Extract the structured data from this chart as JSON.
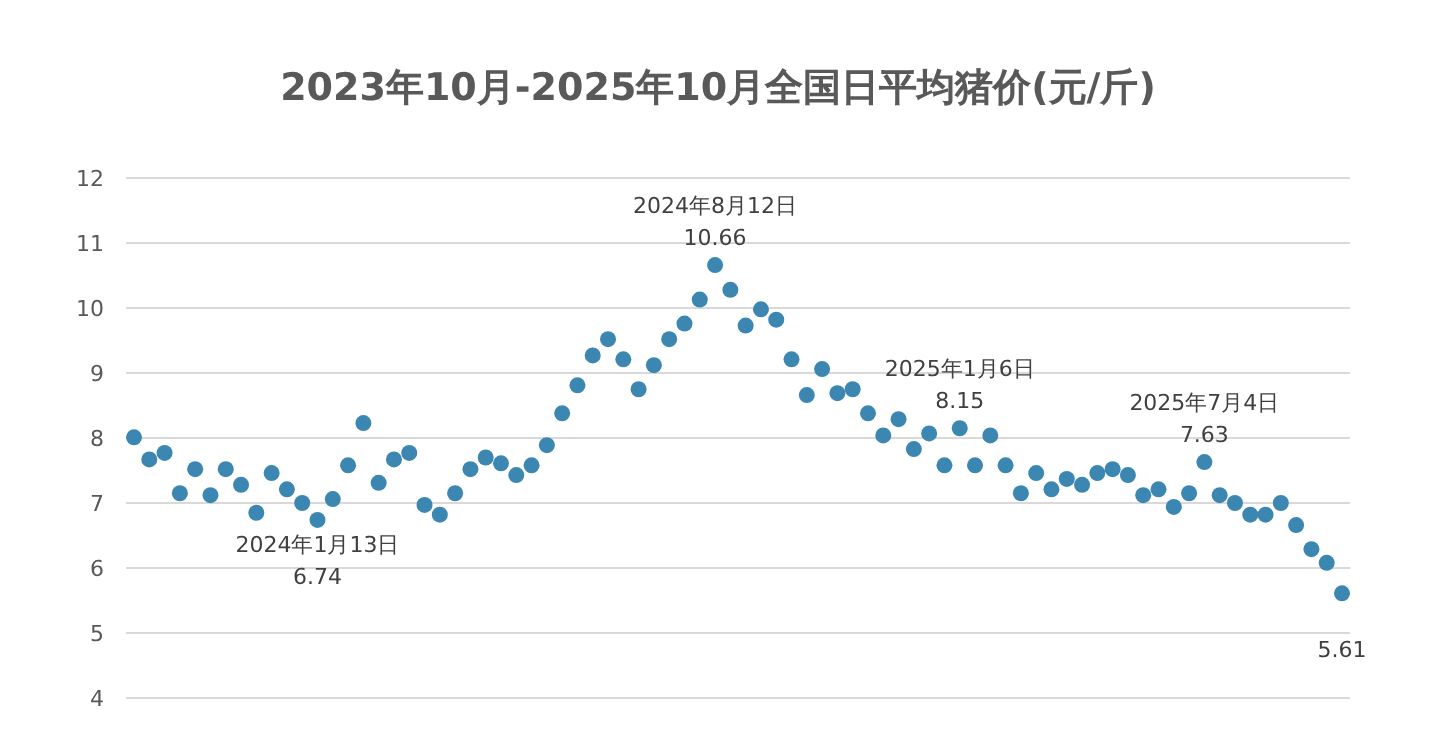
{
  "chart_data": {
    "type": "scatter",
    "title": "2023年10月-2025年10月全国日平均猪价(元/斤)",
    "categories": [
      null,
      null,
      null,
      null,
      null,
      null,
      null,
      null,
      null,
      null,
      null,
      null,
      null,
      null,
      null,
      null,
      null,
      null,
      null,
      null,
      null,
      null,
      null,
      null,
      null,
      null,
      null,
      null,
      null,
      null,
      null,
      null,
      null,
      null,
      null,
      null,
      null,
      null,
      null,
      null,
      null,
      null,
      null,
      null,
      null,
      null,
      null,
      null,
      null,
      null,
      null,
      null,
      null,
      null,
      null,
      null,
      null,
      null,
      null,
      null,
      null,
      null,
      null,
      null,
      null,
      null,
      null,
      null,
      null,
      null,
      null,
      null,
      null,
      null,
      null,
      null,
      null,
      null,
      null,
      null
    ],
    "values": [
      8.01,
      7.67,
      7.77,
      7.15,
      7.52,
      7.12,
      7.52,
      7.28,
      6.85,
      7.46,
      7.21,
      7.0,
      6.74,
      7.06,
      7.58,
      8.23,
      7.31,
      7.67,
      7.77,
      6.97,
      6.82,
      7.15,
      7.52,
      7.7,
      7.61,
      7.43,
      7.58,
      7.89,
      8.38,
      8.81,
      9.27,
      9.52,
      9.21,
      8.75,
      9.12,
      9.52,
      9.76,
      10.13,
      10.66,
      10.28,
      9.73,
      9.98,
      9.82,
      9.21,
      8.66,
      9.06,
      8.69,
      8.75,
      8.38,
      8.04,
      8.29,
      7.83,
      8.07,
      7.58,
      8.15,
      7.58,
      8.04,
      7.58,
      7.15,
      7.46,
      7.21,
      7.37,
      7.28,
      7.46,
      7.52,
      7.43,
      7.12,
      7.21,
      6.94,
      7.15,
      7.63,
      7.12,
      7.0,
      6.82,
      6.82,
      7.0,
      6.66,
      6.29,
      6.08,
      5.61
    ],
    "value_labels": [
      null,
      null,
      null,
      null,
      null,
      null,
      null,
      null,
      null,
      null,
      null,
      null,
      "6.74",
      null,
      null,
      null,
      null,
      null,
      null,
      null,
      null,
      null,
      null,
      null,
      null,
      null,
      null,
      null,
      null,
      null,
      null,
      null,
      null,
      null,
      null,
      null,
      null,
      null,
      "10.66",
      null,
      null,
      null,
      null,
      null,
      null,
      null,
      null,
      null,
      null,
      null,
      null,
      null,
      null,
      null,
      "8.15",
      null,
      null,
      null,
      null,
      null,
      null,
      null,
      null,
      null,
      null,
      null,
      null,
      null,
      null,
      null,
      "7.63",
      null,
      null,
      null,
      null,
      null,
      null,
      null,
      null,
      "5.61"
    ],
    "color": "#3b87b2",
    "marker": "circle",
    "grid": "y",
    "ylim": [
      4,
      12
    ],
    "yticks": [
      4,
      5,
      6,
      7,
      8,
      9,
      10,
      11,
      12
    ],
    "annotations": [
      {
        "text": "2024年1月13日",
        "y": 6.74
      },
      {
        "text": "2024年8月12日",
        "y": 10.66
      },
      {
        "text": "2025年1月6日",
        "y": 8.15
      },
      {
        "text": "2025年7月4日",
        "y": 7.63
      }
    ]
  }
}
